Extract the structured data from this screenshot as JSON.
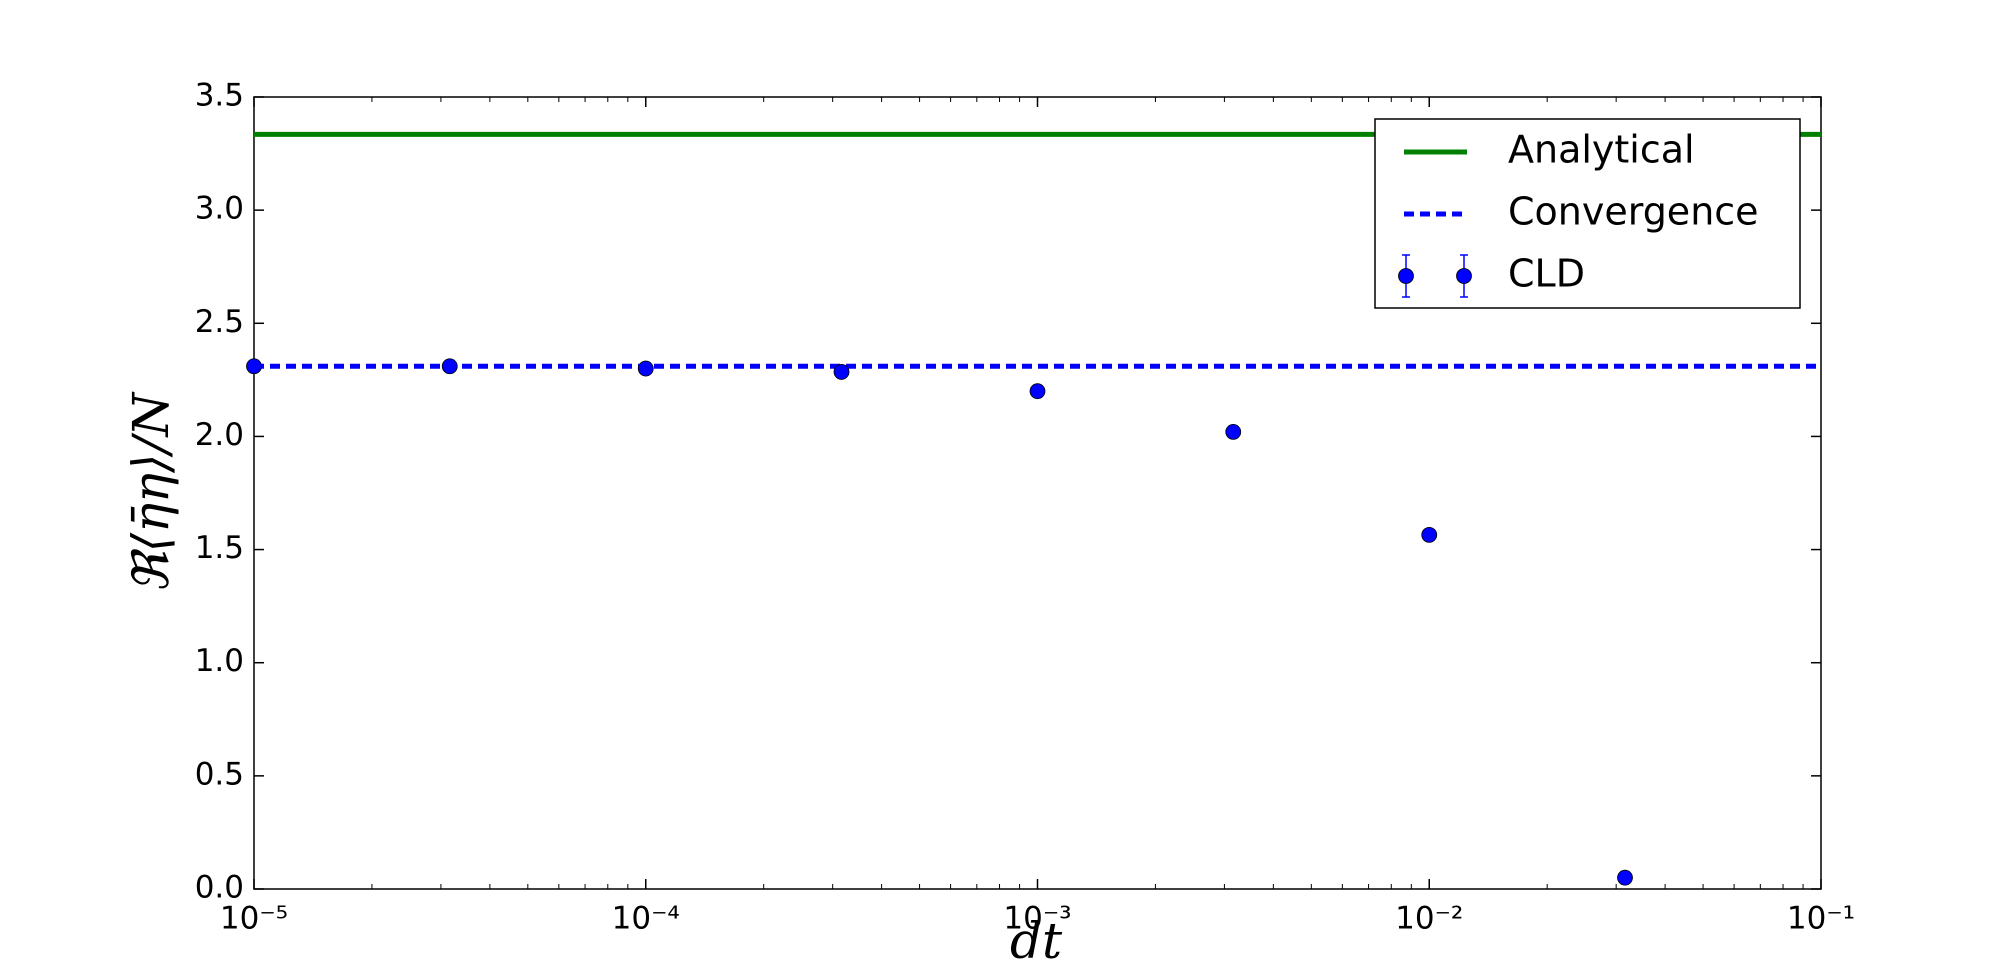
{
  "chart_data": {
    "type": "scatter",
    "x_label": "dt",
    "y_label": "ℜ⟨η̄η⟩/N",
    "x_log": true,
    "xlim": [
      1e-05,
      0.1
    ],
    "xticks": [
      {
        "value": 1e-05,
        "label": "10⁻⁵"
      },
      {
        "value": 0.0001,
        "label": "10⁻⁴"
      },
      {
        "value": 0.001,
        "label": "10⁻³"
      },
      {
        "value": 0.01,
        "label": "10⁻²"
      },
      {
        "value": 0.1,
        "label": "10⁻¹"
      }
    ],
    "ylim": [
      0,
      3.5
    ],
    "yticks": [
      {
        "value": 0,
        "label": "0.0"
      },
      {
        "value": 0.5,
        "label": "0.5"
      },
      {
        "value": 1,
        "label": "1.0"
      },
      {
        "value": 1.5,
        "label": "1.5"
      },
      {
        "value": 2,
        "label": "2.0"
      },
      {
        "value": 2.5,
        "label": "2.5"
      },
      {
        "value": 3,
        "label": "3.0"
      },
      {
        "value": 3.5,
        "label": "3.5"
      }
    ],
    "legend": "upper right",
    "reference_lines": [
      {
        "name": "Analytical",
        "color": "#008000",
        "style": "solid",
        "value": 3.335
      },
      {
        "name": "Convergence",
        "color": "#0000ff",
        "style": "dotted",
        "value": 2.31
      }
    ],
    "series": [
      {
        "name": "CLD",
        "color": "#0000ff",
        "x": [
          1e-05,
          3.16e-05,
          0.0001,
          0.000316,
          0.001,
          0.00316,
          0.01,
          0.0316
        ],
        "values": [
          2.31,
          2.31,
          2.3,
          2.285,
          2.2,
          2.02,
          1.565,
          0.05
        ]
      }
    ]
  }
}
